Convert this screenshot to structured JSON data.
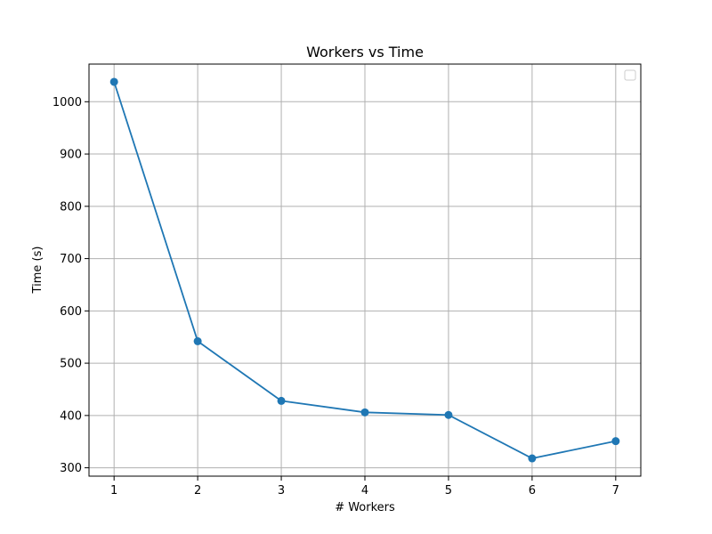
{
  "chart_data": {
    "type": "line",
    "title": "Workers vs Time",
    "xlabel": "# Workers",
    "ylabel": "Time (s)",
    "x": [
      1,
      2,
      3,
      4,
      5,
      6,
      7
    ],
    "series": [
      {
        "values": [
          1038,
          542,
          428,
          406,
          401,
          318,
          351
        ],
        "color": "#1f77b4",
        "marker": "circle"
      }
    ],
    "xticks": [
      1,
      2,
      3,
      4,
      5,
      6,
      7
    ],
    "yticks": [
      300,
      400,
      500,
      600,
      700,
      800,
      900,
      1000
    ],
    "xlim": [
      0.7,
      7.3
    ],
    "ylim": [
      284,
      1072
    ],
    "grid": true,
    "legend": {
      "placement": "top-right",
      "entries": []
    }
  }
}
